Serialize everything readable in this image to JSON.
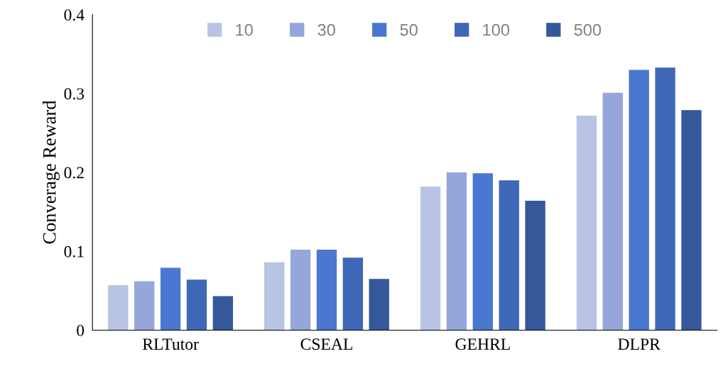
{
  "chart_data": {
    "type": "bar",
    "ylabel": "Converage Reward",
    "categories": [
      "RLTutor",
      "CSEAL",
      "GEHRL",
      "DLPR"
    ],
    "series": [
      {
        "name": "10",
        "color": "#b9c4e4",
        "values": [
          0.057,
          0.086,
          0.182,
          0.272
        ]
      },
      {
        "name": "30",
        "color": "#94a6da",
        "values": [
          0.062,
          0.102,
          0.2,
          0.301
        ]
      },
      {
        "name": "50",
        "color": "#4a78d0",
        "values": [
          0.079,
          0.102,
          0.199,
          0.33
        ]
      },
      {
        "name": "100",
        "color": "#3f67b7",
        "values": [
          0.064,
          0.092,
          0.19,
          0.333
        ]
      },
      {
        "name": "500",
        "color": "#34589a",
        "values": [
          0.043,
          0.065,
          0.164,
          0.279
        ]
      }
    ],
    "ylim": [
      0,
      0.4
    ],
    "yticks": [
      {
        "value": 0,
        "label": "0"
      },
      0.1,
      0.2,
      0.3,
      0.4
    ],
    "grid": false,
    "legend": "top"
  }
}
